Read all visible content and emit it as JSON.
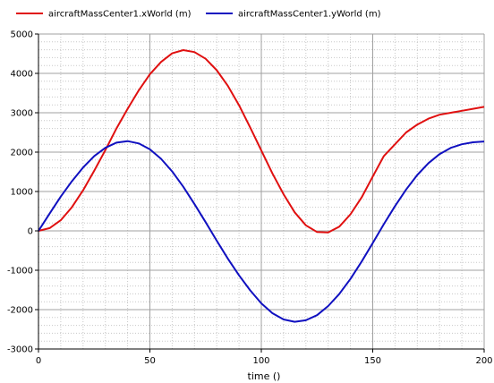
{
  "chart_data": {
    "type": "line",
    "title": "",
    "xlabel": "time ()",
    "ylabel": "",
    "xlim": [
      0,
      200
    ],
    "ylim": [
      -3000,
      5000
    ],
    "xticks": [
      0,
      50,
      100,
      150,
      200
    ],
    "yticks": [
      -3000,
      -2000,
      -1000,
      0,
      1000,
      2000,
      3000,
      4000,
      5000
    ],
    "grid": true,
    "legend": "top-left",
    "series": [
      {
        "name": "aircraftMassCenter1.xWorld (m)",
        "color": "#e01010",
        "x": [
          0,
          5,
          10,
          15,
          20,
          25,
          30,
          35,
          40,
          45,
          50,
          55,
          60,
          65,
          70,
          75,
          80,
          85,
          90,
          95,
          100,
          105,
          110,
          115,
          120,
          125,
          130,
          135,
          140,
          145,
          150,
          155,
          160,
          165,
          170,
          175,
          180,
          185,
          190,
          195,
          200
        ],
        "y": [
          0,
          70,
          270,
          600,
          1030,
          1530,
          2050,
          2600,
          3100,
          3570,
          3980,
          4290,
          4510,
          4590,
          4540,
          4370,
          4080,
          3680,
          3190,
          2630,
          2040,
          1460,
          930,
          470,
          140,
          -30,
          -40,
          110,
          420,
          850,
          1380,
          1900,
          2200,
          2500,
          2700,
          2850,
          2950,
          3000,
          3050,
          3100,
          3150
        ]
      },
      {
        "name": "aircraftMassCenter1.yWorld (m)",
        "color": "#1010c0",
        "x": [
          0,
          5,
          10,
          15,
          20,
          25,
          30,
          35,
          40,
          45,
          50,
          55,
          60,
          65,
          70,
          75,
          80,
          85,
          90,
          95,
          100,
          105,
          110,
          115,
          120,
          125,
          130,
          135,
          140,
          145,
          150,
          155,
          160,
          165,
          170,
          175,
          180,
          185,
          190,
          195,
          200
        ],
        "y": [
          0,
          440,
          870,
          1260,
          1610,
          1900,
          2110,
          2240,
          2280,
          2220,
          2070,
          1830,
          1510,
          1120,
          680,
          220,
          -250,
          -710,
          -1130,
          -1510,
          -1840,
          -2090,
          -2250,
          -2310,
          -2270,
          -2140,
          -1910,
          -1600,
          -1220,
          -780,
          -310,
          170,
          630,
          1050,
          1420,
          1720,
          1950,
          2110,
          2200,
          2250,
          2270
        ]
      }
    ]
  }
}
